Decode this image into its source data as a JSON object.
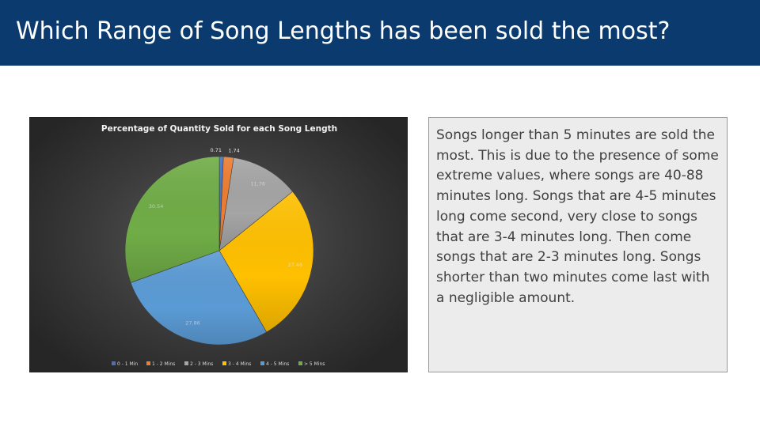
{
  "slide": {
    "title": "Which Range of Song Lengths has been sold the most?",
    "body_text": "Songs longer than 5 minutes are sold the most. This is due to the presence of some extreme values, where songs are 40-88 minutes long. Songs that are 4-5 minutes long come second, very close to songs that are 3-4 minutes long. Then come songs that are 2-3 minutes long. Songs shorter than two minutes come last with a negligible amount."
  },
  "colors": {
    "title_bar": "#0b3b6e",
    "title_text": "#ffffff",
    "chart_background": "#3b3b3b",
    "text_box_background": "#ececec",
    "body_text": "#404040"
  },
  "chart_data": {
    "type": "pie",
    "title": "Percentage of Quantity Sold for each Song Length",
    "categories": [
      "0 - 1 Min",
      "1 - 2 Mins",
      "2 - 3 Mins",
      "3 - 4 Mins",
      "4 - 5 Mins",
      "> 5 Mins"
    ],
    "values": [
      0.71,
      1.74,
      11.76,
      27.46,
      27.86,
      30.54
    ],
    "data_labels": [
      "0.71",
      "1.74",
      "11.76",
      "27.46",
      "27.86",
      "30.54"
    ],
    "colors": [
      "#4472c4",
      "#ed7d31",
      "#a5a5a5",
      "#ffc000",
      "#5b9bd5",
      "#70ad47"
    ],
    "legend_position": "bottom"
  }
}
